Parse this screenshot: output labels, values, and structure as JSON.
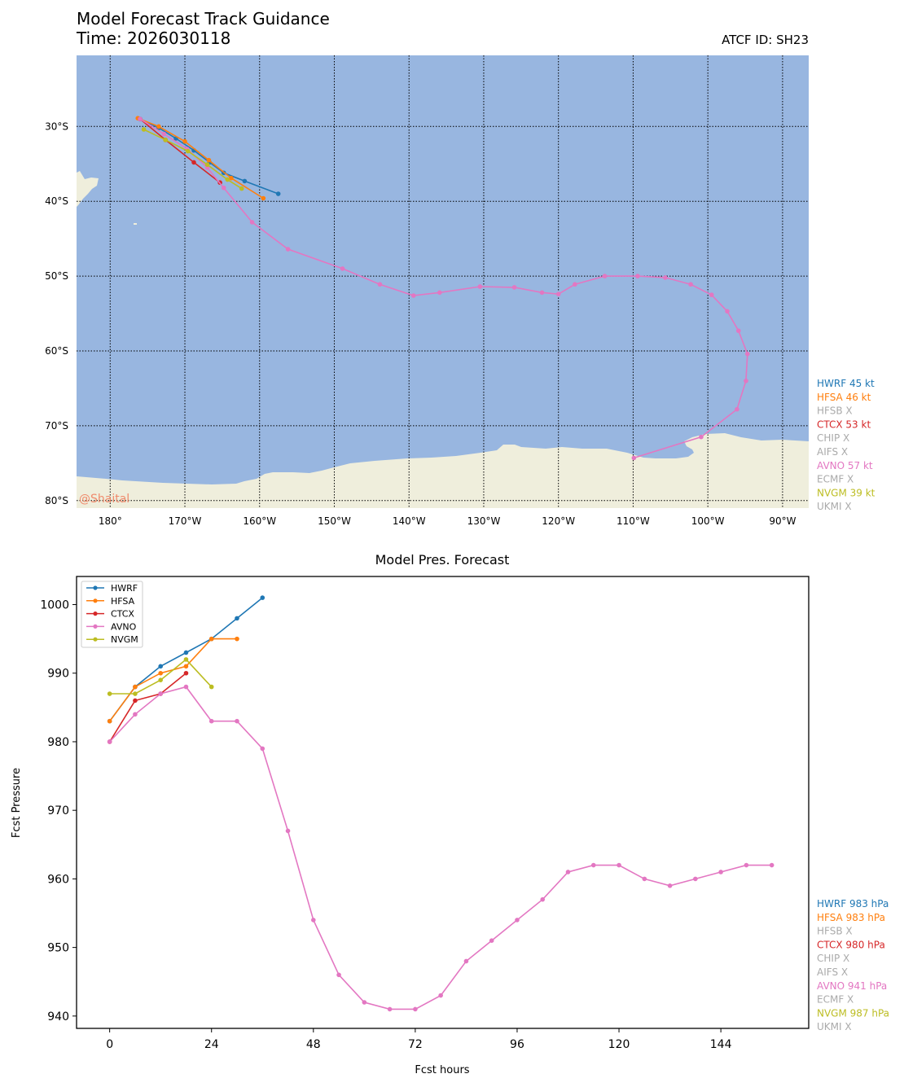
{
  "title": "Model Forecast Track Guidance",
  "time_label": "Time: 2026030118",
  "atcf_label": "ATCF ID: SH23",
  "watermark": "@Shaital",
  "colors": {
    "HWRF": "#1f77b4",
    "HFSA": "#ff7f0e",
    "CTCX": "#d62728",
    "AVNO": "#e377c2",
    "NVGM": "#bcbd22",
    "missing": "#aaaaaa",
    "ocean": "#98b6e0",
    "land": "#efeedc"
  },
  "map_legend": [
    {
      "text": "HWRF 45 kt",
      "model": "HWRF"
    },
    {
      "text": "HFSA 46 kt",
      "model": "HFSA"
    },
    {
      "text": "HFSB X",
      "model": "missing"
    },
    {
      "text": "CTCX 53 kt",
      "model": "CTCX"
    },
    {
      "text": "CHIP X",
      "model": "missing"
    },
    {
      "text": "AIFS X",
      "model": "missing"
    },
    {
      "text": "AVNO 57 kt",
      "model": "AVNO"
    },
    {
      "text": "ECMF X",
      "model": "missing"
    },
    {
      "text": "NVGM 39 kt",
      "model": "NVGM"
    },
    {
      "text": "UKMI X",
      "model": "missing"
    }
  ],
  "pres_legend": [
    {
      "text": "HWRF 983 hPa",
      "model": "HWRF"
    },
    {
      "text": "HFSA 983 hPa",
      "model": "HFSA"
    },
    {
      "text": "HFSB X",
      "model": "missing"
    },
    {
      "text": "CTCX 980 hPa",
      "model": "CTCX"
    },
    {
      "text": "CHIP X",
      "model": "missing"
    },
    {
      "text": "AIFS X",
      "model": "missing"
    },
    {
      "text": "AVNO 941 hPa",
      "model": "AVNO"
    },
    {
      "text": "ECMF X",
      "model": "missing"
    },
    {
      "text": "NVGM 987 hPa",
      "model": "NVGM"
    },
    {
      "text": "UKMI X",
      "model": "missing"
    }
  ],
  "chart_data": [
    {
      "type": "line",
      "subtype": "map-track",
      "xlim": [
        -184.5,
        -86.5
      ],
      "ylim": [
        -81,
        -20.5
      ],
      "x_ticks": [
        -180,
        -170,
        -160,
        -150,
        -140,
        -130,
        -120,
        -110,
        -100,
        -90
      ],
      "x_tick_labels": [
        "180°",
        "170°W",
        "160°W",
        "150°W",
        "140°W",
        "130°W",
        "120°W",
        "110°W",
        "100°W",
        "90°W"
      ],
      "y_ticks": [
        -30,
        -40,
        -50,
        -60,
        -70,
        -80
      ],
      "y_tick_labels": [
        "30°S",
        "40°S",
        "50°S",
        "60°S",
        "70°S",
        "80°S"
      ],
      "grid": true,
      "series": [
        {
          "name": "HWRF",
          "lon": [
            -176.0,
            -173.5,
            -171.2,
            -168.8,
            -166.7,
            -164.8,
            -162.0,
            -157.5
          ],
          "lat": [
            -29.0,
            -30.2,
            -31.6,
            -33.2,
            -34.8,
            -36.2,
            -37.3,
            -39.0
          ]
        },
        {
          "name": "HFSA",
          "lon": [
            -176.3,
            -173.5,
            -170.0,
            -166.8,
            -163.8,
            -159.5
          ],
          "lat": [
            -28.9,
            -30.0,
            -32.0,
            -34.5,
            -36.9,
            -39.6
          ]
        },
        {
          "name": "CTCX",
          "lon": [
            -176.0,
            -172.6,
            -168.8,
            -165.3
          ],
          "lat": [
            -29.0,
            -31.8,
            -34.8,
            -37.5
          ]
        },
        {
          "name": "AVNO",
          "lon": [
            -176.0,
            -172.8,
            -169.7,
            -167.0,
            -164.8,
            -161.0,
            -156.2,
            -148.9,
            -143.9,
            -139.4,
            -135.9,
            -130.5,
            -125.9,
            -122.2,
            -120.0,
            -117.8,
            -113.8,
            -109.4,
            -105.7,
            -102.3,
            -99.5,
            -97.4,
            -95.9,
            -94.7,
            -94.9,
            -96.1,
            -100.9,
            -109.9
          ],
          "lat": [
            -29.0,
            -31.0,
            -33.0,
            -35.5,
            -38.2,
            -42.8,
            -46.4,
            -49.0,
            -51.1,
            -52.6,
            -52.2,
            -51.4,
            -51.5,
            -52.2,
            -52.4,
            -51.1,
            -50.0,
            -50.0,
            -50.2,
            -51.1,
            -52.5,
            -54.7,
            -57.3,
            -60.4,
            -64.0,
            -67.8,
            -71.5,
            -74.3
          ]
        },
        {
          "name": "NVGM",
          "lon": [
            -175.5,
            -172.6,
            -169.6,
            -167.0,
            -164.3,
            -162.4
          ],
          "lat": [
            -30.4,
            -31.8,
            -33.3,
            -35.1,
            -37.1,
            -38.3
          ]
        }
      ]
    },
    {
      "type": "line",
      "title": "Model Pres. Forecast",
      "xlabel": "Fcst hours",
      "ylabel": "Fcst Pressure",
      "xlim": [
        -7.8,
        164.7
      ],
      "ylim": [
        938.2,
        1004.1
      ],
      "x_ticks": [
        0,
        24,
        48,
        72,
        96,
        120,
        144
      ],
      "y_ticks": [
        940,
        950,
        960,
        970,
        980,
        990,
        1000
      ],
      "legend_position": "top-left",
      "series": [
        {
          "name": "HWRF",
          "x": [
            0,
            6,
            12,
            18,
            24,
            30,
            36
          ],
          "y": [
            983,
            988,
            991,
            993,
            995,
            998,
            1001
          ]
        },
        {
          "name": "HFSA",
          "x": [
            0,
            6,
            12,
            18,
            24,
            30
          ],
          "y": [
            983,
            988,
            990,
            991,
            995,
            995
          ]
        },
        {
          "name": "CTCX",
          "x": [
            0,
            6,
            12,
            18
          ],
          "y": [
            980,
            986,
            987,
            990
          ]
        },
        {
          "name": "AVNO",
          "x": [
            0,
            6,
            12,
            18,
            24,
            30,
            36,
            42,
            48,
            54,
            60,
            66,
            72,
            78,
            84,
            90,
            96,
            102,
            108,
            114,
            120,
            126,
            132,
            138,
            144,
            150,
            156
          ],
          "y": [
            980,
            984,
            987,
            988,
            983,
            983,
            979,
            967,
            954,
            946,
            942,
            941,
            941,
            943,
            948,
            951,
            954,
            957,
            961,
            962,
            962,
            960,
            959,
            960,
            961,
            962,
            962
          ]
        },
        {
          "name": "NVGM",
          "x": [
            0,
            6,
            12,
            18,
            24
          ],
          "y": [
            987,
            987,
            989,
            992,
            988
          ]
        }
      ]
    }
  ]
}
